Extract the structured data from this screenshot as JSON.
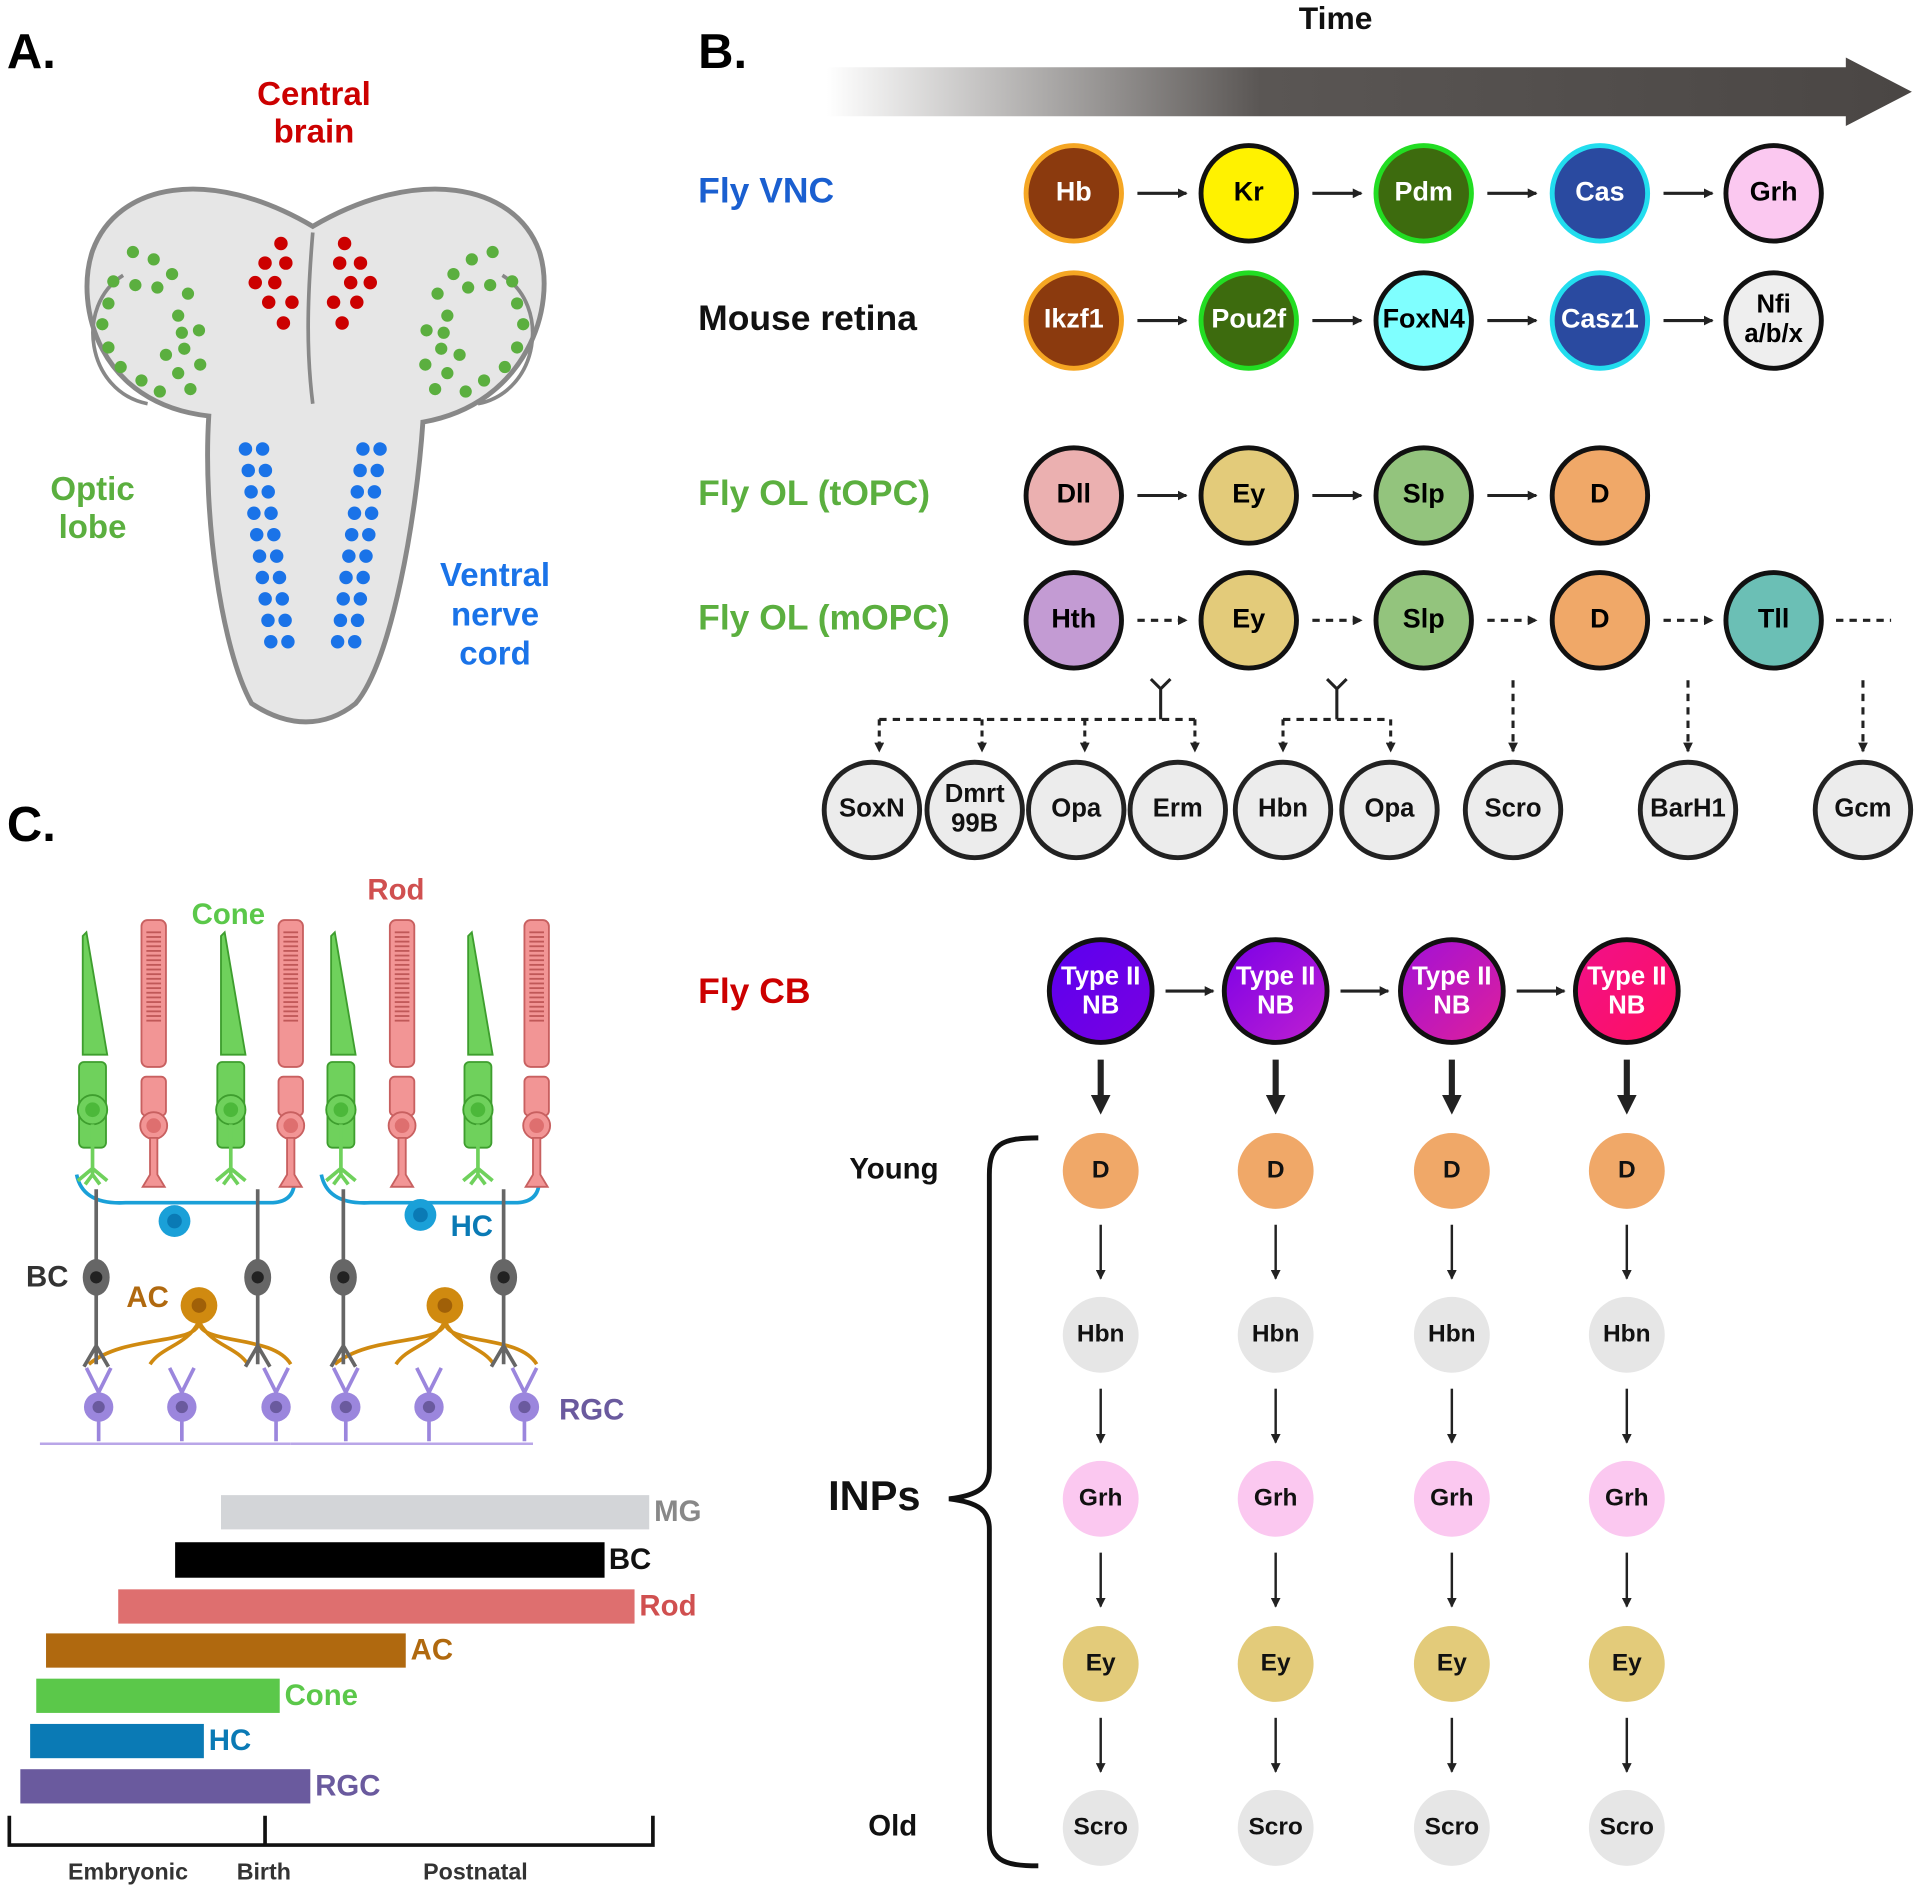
{
  "panel_labels": {
    "a": "A.",
    "b": "B.",
    "c": "C."
  },
  "panel_a": {
    "central_brain": [
      "Central",
      "brain"
    ],
    "optic_lobe": [
      "Optic",
      "lobe"
    ],
    "ventral_nerve_cord": [
      "Ventral",
      "nerve",
      "cord"
    ],
    "colors": {
      "central": "#CC0000",
      "optic": "#5BAF3F",
      "vnc": "#1A73E8",
      "tissue": "#E6E6E6"
    }
  },
  "panel_b": {
    "time_label": "Time",
    "rows": [
      {
        "label": "Fly VNC",
        "label_color": "#1A5FD0",
        "dashed": false,
        "nodes": [
          {
            "lines": [
              "Hb"
            ],
            "fill": "#8B3A0E",
            "stroke": "#F5A623",
            "text": "#fff"
          },
          {
            "lines": [
              "Kr"
            ],
            "fill": "#FFF200",
            "stroke": "#111111",
            "text": "#000"
          },
          {
            "lines": [
              "Pdm"
            ],
            "fill": "#3D6B0E",
            "stroke": "#22DD22",
            "text": "#fff"
          },
          {
            "lines": [
              "Cas"
            ],
            "fill": "#2A4AA0",
            "stroke": "#22DDEE",
            "text": "#fff"
          },
          {
            "lines": [
              "Grh"
            ],
            "fill": "#FBC8F0",
            "stroke": "#111111",
            "text": "#000"
          }
        ]
      },
      {
        "label": "Mouse retina",
        "label_color": "#111111",
        "dashed": false,
        "nodes": [
          {
            "lines": [
              "Ikzf1"
            ],
            "fill": "#8B3A0E",
            "stroke": "#F5A623",
            "text": "#fff"
          },
          {
            "lines": [
              "Pou2f"
            ],
            "fill": "#3D6B0E",
            "stroke": "#22DD22",
            "text": "#fff"
          },
          {
            "lines": [
              "FoxN4"
            ],
            "fill": "#7FFFFF",
            "stroke": "#111111",
            "text": "#000"
          },
          {
            "lines": [
              "Casz1"
            ],
            "fill": "#2A4AA0",
            "stroke": "#22DDEE",
            "text": "#fff"
          },
          {
            "lines": [
              "Nfi",
              "a/b/x"
            ],
            "fill": "#EEEEEE",
            "stroke": "#111111",
            "text": "#000"
          }
        ]
      },
      {
        "label": "Fly OL (tOPC)",
        "label_color": "#5BAF3F",
        "dashed": false,
        "nodes": [
          {
            "lines": [
              "Dll"
            ],
            "fill": "#EBB0B0",
            "stroke": "#111111",
            "text": "#000"
          },
          {
            "lines": [
              "Ey"
            ],
            "fill": "#E3CB7A",
            "stroke": "#111111",
            "text": "#000"
          },
          {
            "lines": [
              "Slp"
            ],
            "fill": "#93C47D",
            "stroke": "#111111",
            "text": "#000"
          },
          {
            "lines": [
              "D"
            ],
            "fill": "#F0A868",
            "stroke": "#111111",
            "text": "#000"
          }
        ]
      },
      {
        "label": "Fly OL (mOPC)",
        "label_color": "#5BAF3F",
        "dashed": true,
        "nodes": [
          {
            "lines": [
              "Hth"
            ],
            "fill": "#C39BD3",
            "stroke": "#111111",
            "text": "#000"
          },
          {
            "lines": [
              "Ey"
            ],
            "fill": "#E3CB7A",
            "stroke": "#111111",
            "text": "#000"
          },
          {
            "lines": [
              "Slp"
            ],
            "fill": "#93C47D",
            "stroke": "#111111",
            "text": "#000"
          },
          {
            "lines": [
              "D"
            ],
            "fill": "#F0A868",
            "stroke": "#111111",
            "text": "#000"
          },
          {
            "lines": [
              "Tll"
            ],
            "fill": "#6BBFB5",
            "stroke": "#111111",
            "text": "#000"
          }
        ]
      }
    ],
    "mopc_targets": [
      {
        "lines": [
          "SoxN"
        ]
      },
      {
        "lines": [
          "Dmrt",
          "99B"
        ]
      },
      {
        "lines": [
          "Opa"
        ]
      },
      {
        "lines": [
          "Erm"
        ]
      },
      {
        "lines": [
          "Hbn"
        ]
      },
      {
        "lines": [
          "Opa"
        ]
      },
      {
        "lines": [
          "Scro"
        ]
      },
      {
        "lines": [
          "BarH1"
        ]
      },
      {
        "lines": [
          "Gcm"
        ]
      }
    ],
    "central_brain": {
      "label": "Fly CB",
      "label_color": "#CC0000",
      "neuroblasts": [
        {
          "lines": [
            "Type II",
            "NB"
          ],
          "from": "#5A00F0",
          "to": "#7A00E0"
        },
        {
          "lines": [
            "Type II",
            "NB"
          ],
          "from": "#7A00E8",
          "to": "#C020D0"
        },
        {
          "lines": [
            "Type II",
            "NB"
          ],
          "from": "#A010D8",
          "to": "#E0209A"
        },
        {
          "lines": [
            "Type II",
            "NB"
          ],
          "from": "#F0108A",
          "to": "#FF1060"
        }
      ],
      "inp_sequence": [
        {
          "label": "D",
          "fill": "#F0A868"
        },
        {
          "label": "Hbn",
          "fill": "#E6E6E6"
        },
        {
          "label": "Grh",
          "fill": "#FBC8F0"
        },
        {
          "label": "Ey",
          "fill": "#E3CB7A"
        },
        {
          "label": "Scro",
          "fill": "#E6E6E6"
        }
      ],
      "young_label": "Young",
      "old_label": "Old",
      "inps_label": "INPs"
    }
  },
  "panel_c": {
    "cell_labels": {
      "cone": "Cone",
      "rod": "Rod",
      "hc": "HC",
      "bc": "BC",
      "ac": "AC",
      "rgc": "RGC"
    },
    "birth_bars": [
      {
        "label": "MG",
        "color": "#D3D5D8",
        "label_color": "#888888"
      },
      {
        "label": "BC",
        "color": "#000000",
        "label_color": "#111111"
      },
      {
        "label": "Rod",
        "color": "#DE6F6F",
        "label_color": "#D05050"
      },
      {
        "label": "AC",
        "color": "#B0690F",
        "label_color": "#B0690F"
      },
      {
        "label": "Cone",
        "color": "#5BC84A",
        "label_color": "#5BC84A"
      },
      {
        "label": "HC",
        "color": "#0A7AB5",
        "label_color": "#0A7AB5"
      },
      {
        "label": "RGC",
        "color": "#6A5A9E",
        "label_color": "#6A5A9E"
      }
    ],
    "timeline": [
      "Embryonic",
      "Birth",
      "Postnatal"
    ]
  }
}
